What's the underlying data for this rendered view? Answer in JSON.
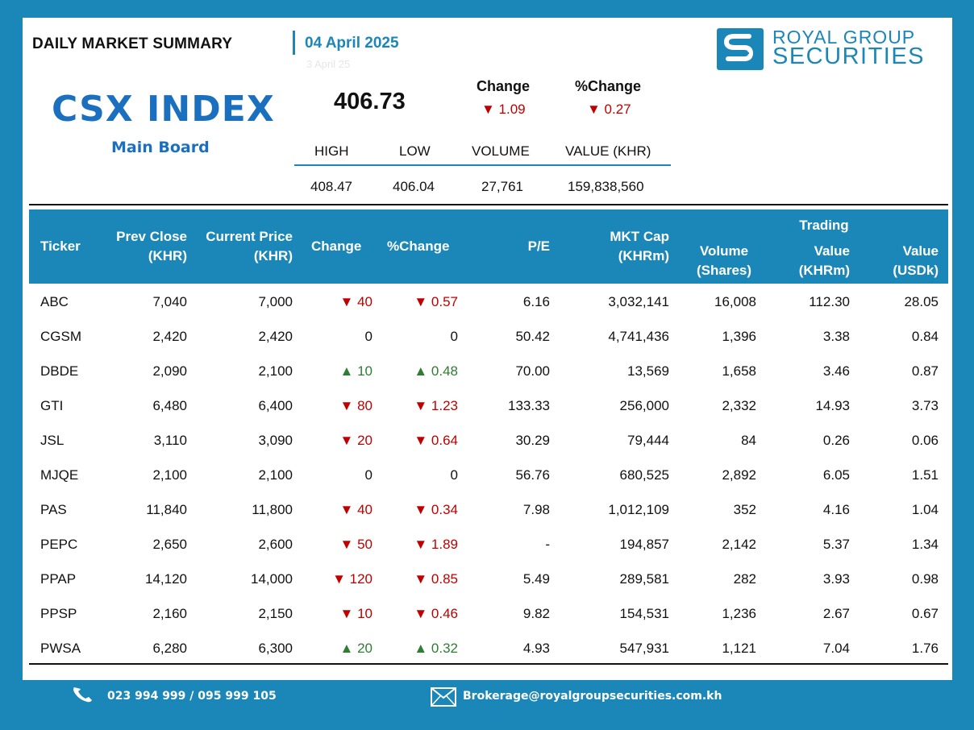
{
  "header": {
    "title": "DAILY MARKET SUMMARY",
    "date": "04 April 2025",
    "date_ghost": "3 April 25",
    "brand_line1": "ROYAL GROUP",
    "brand_line2": "SECURITIES"
  },
  "index": {
    "name": "CSX INDEX",
    "board": "Main Board",
    "value": "406.73",
    "change_label": "Change",
    "change_value": "▼ 1.09",
    "pct_change_label": "%Change",
    "pct_change_value": "▼ 0.27",
    "stats": {
      "high_label": "HIGH",
      "high": "408.47",
      "low_label": "LOW",
      "low": "406.04",
      "volume_label": "VOLUME",
      "volume": "27,761",
      "value_label": "VALUE (KHR)",
      "value": "159,838,560"
    }
  },
  "table": {
    "headers": {
      "ticker": "Ticker",
      "prev_close": [
        "Prev Close",
        "(KHR)"
      ],
      "current_price": [
        "Current Price",
        "(KHR)"
      ],
      "change": "Change",
      "pct_change": "%Change",
      "pe": "P/E",
      "mkt_cap": [
        "MKT Cap",
        "(KHRm)"
      ],
      "volume": [
        "Volume",
        "(Shares)"
      ],
      "trading": "Trading",
      "value_khr": [
        "Value",
        "(KHRm)"
      ],
      "value_usd": [
        "Value",
        "(USDk)"
      ]
    },
    "rows": [
      {
        "ticker": "ABC",
        "prev": "7,040",
        "cur": "7,000",
        "chg": "▼ 40",
        "pct": "▼ 0.57",
        "dir": "down",
        "pe": "6.16",
        "cap": "3,032,141",
        "vol": "16,008",
        "vkhr": "112.30",
        "vusd": "28.05"
      },
      {
        "ticker": "CGSM",
        "prev": "2,420",
        "cur": "2,420",
        "chg": "0",
        "pct": "0",
        "dir": "flat",
        "pe": "50.42",
        "cap": "4,741,436",
        "vol": "1,396",
        "vkhr": "3.38",
        "vusd": "0.84"
      },
      {
        "ticker": "DBDE",
        "prev": "2,090",
        "cur": "2,100",
        "chg": "▲ 10",
        "pct": "▲ 0.48",
        "dir": "up",
        "pe": "70.00",
        "cap": "13,569",
        "vol": "1,658",
        "vkhr": "3.46",
        "vusd": "0.87"
      },
      {
        "ticker": "GTI",
        "prev": "6,480",
        "cur": "6,400",
        "chg": "▼ 80",
        "pct": "▼ 1.23",
        "dir": "down",
        "pe": "133.33",
        "cap": "256,000",
        "vol": "2,332",
        "vkhr": "14.93",
        "vusd": "3.73"
      },
      {
        "ticker": "JSL",
        "prev": "3,110",
        "cur": "3,090",
        "chg": "▼ 20",
        "pct": "▼ 0.64",
        "dir": "down",
        "pe": "30.29",
        "cap": "79,444",
        "vol": "84",
        "vkhr": "0.26",
        "vusd": "0.06"
      },
      {
        "ticker": "MJQE",
        "prev": "2,100",
        "cur": "2,100",
        "chg": "0",
        "pct": "0",
        "dir": "flat",
        "pe": "56.76",
        "cap": "680,525",
        "vol": "2,892",
        "vkhr": "6.05",
        "vusd": "1.51"
      },
      {
        "ticker": "PAS",
        "prev": "11,840",
        "cur": "11,800",
        "chg": "▼ 40",
        "pct": "▼ 0.34",
        "dir": "down",
        "pe": "7.98",
        "cap": "1,012,109",
        "vol": "352",
        "vkhr": "4.16",
        "vusd": "1.04"
      },
      {
        "ticker": "PEPC",
        "prev": "2,650",
        "cur": "2,600",
        "chg": "▼ 50",
        "pct": "▼ 1.89",
        "dir": "down",
        "pe": "-",
        "cap": "194,857",
        "vol": "2,142",
        "vkhr": "5.37",
        "vusd": "1.34"
      },
      {
        "ticker": "PPAP",
        "prev": "14,120",
        "cur": "14,000",
        "chg": "▼ 120",
        "pct": "▼ 0.85",
        "dir": "down",
        "pe": "5.49",
        "cap": "289,581",
        "vol": "282",
        "vkhr": "3.93",
        "vusd": "0.98"
      },
      {
        "ticker": "PPSP",
        "prev": "2,160",
        "cur": "2,150",
        "chg": "▼ 10",
        "pct": "▼ 0.46",
        "dir": "down",
        "pe": "9.82",
        "cap": "154,531",
        "vol": "1,236",
        "vkhr": "2.67",
        "vusd": "0.67"
      },
      {
        "ticker": "PWSA",
        "prev": "6,280",
        "cur": "6,300",
        "chg": "▲ 20",
        "pct": "▲ 0.32",
        "dir": "up",
        "pe": "4.93",
        "cap": "547,931",
        "vol": "1,121",
        "vkhr": "7.04",
        "vusd": "1.76"
      }
    ]
  },
  "footer": {
    "phone": "023 994 999 / 095 999 105",
    "phone_icon": "phone-icon",
    "email": "Brokerage@royalgroupsecurities.com.kh",
    "email_icon": "envelope-icon"
  },
  "colors": {
    "accent": "#1b86b8",
    "brand_blue": "#1b6fbf",
    "down": "#c00000",
    "up": "#2e7d32"
  }
}
